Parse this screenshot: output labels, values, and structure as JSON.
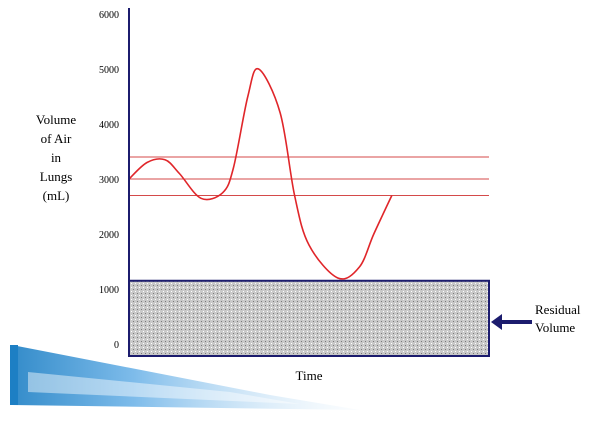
{
  "chart_data": {
    "type": "line",
    "title": "",
    "xlabel": "Time",
    "ylabel": [
      "Volume",
      "of Air",
      "in",
      "Lungs",
      "(mL)"
    ],
    "ylim": [
      0,
      6000
    ],
    "y_ticks": [
      {
        "value": 0,
        "label": "0"
      },
      {
        "value": 1000,
        "label": "1000"
      },
      {
        "value": 2000,
        "label": "2000"
      },
      {
        "value": 3000,
        "label": "3000"
      },
      {
        "value": 4000,
        "label": "4000"
      },
      {
        "value": 5000,
        "label": "5000"
      },
      {
        "value": 6000,
        "label": "6000"
      }
    ],
    "grid": false,
    "series": [
      {
        "color": "#e0262a",
        "points": [
          [
            0.0,
            3000
          ],
          [
            0.05,
            3300
          ],
          [
            0.1,
            3350
          ],
          [
            0.14,
            3100
          ],
          [
            0.2,
            2650
          ],
          [
            0.26,
            2750
          ],
          [
            0.29,
            3200
          ],
          [
            0.33,
            4500
          ],
          [
            0.36,
            5000
          ],
          [
            0.42,
            4200
          ],
          [
            0.46,
            2700
          ],
          [
            0.5,
            1800
          ],
          [
            0.58,
            1200
          ],
          [
            0.64,
            1400
          ],
          [
            0.68,
            2000
          ],
          [
            0.73,
            2700
          ]
        ]
      }
    ],
    "reference_lines": [
      3400,
      3000,
      2700
    ],
    "residual_region": {
      "ymin": 0,
      "ymax": 1150,
      "label": [
        "Residual",
        "Volume"
      ]
    },
    "colors": {
      "axis": "#1c1c6e",
      "curve": "#e0262a",
      "reference": "#d44a4a",
      "residual_fill": "#bdbdbd",
      "residual_border": "#1c1c6e"
    }
  },
  "decoration": {
    "accent_colors": [
      "#1d7fc4",
      "#6fb4e8",
      "#cfe6f7"
    ]
  }
}
